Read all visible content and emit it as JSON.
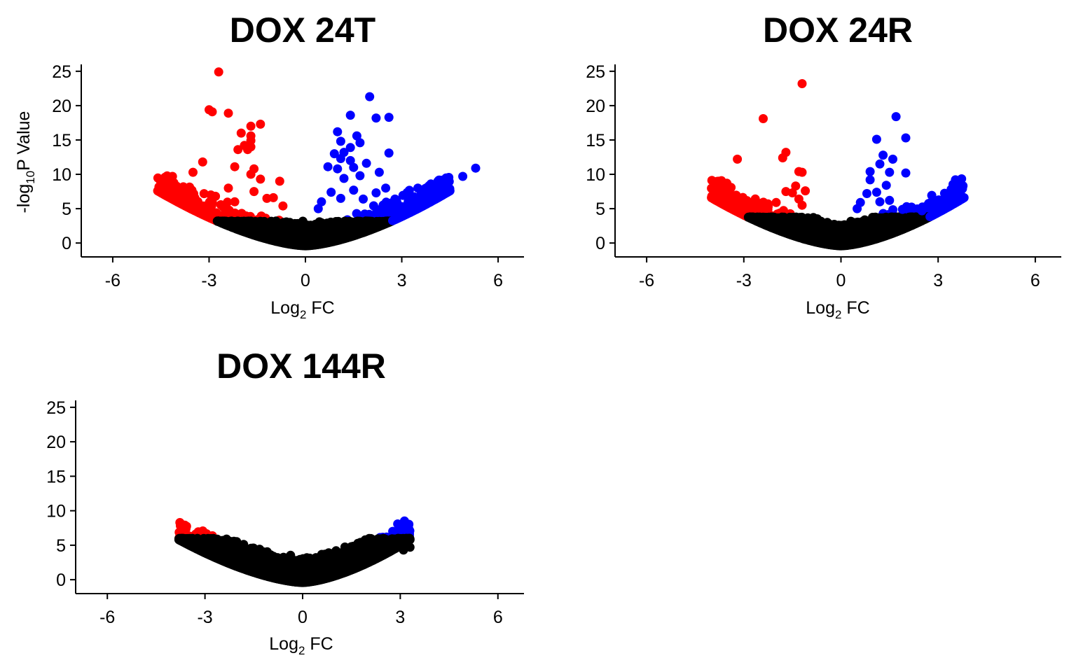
{
  "chart_data": [
    {
      "type": "scatter",
      "title": "DOX 24T",
      "xlabel": {
        "base": "Log",
        "sub": "2",
        "rest": " FC"
      },
      "ylabel": {
        "pre": "-log",
        "sub": "10",
        "rest": "P Value"
      },
      "xlim": [
        -6.5,
        6.5
      ],
      "ylim": [
        -1,
        26
      ],
      "xticks": [
        "-6",
        "-3",
        "0",
        "3",
        "6"
      ],
      "yticks": [
        "0",
        "5",
        "10",
        "15",
        "20",
        "25"
      ],
      "colors": {
        "down": "#ff0000",
        "up": "#0000ff",
        "ns": "#000000"
      },
      "ns_threshold": 3.2,
      "envelope": {
        "down_edge": -4.6,
        "up_edge": 4.5,
        "edge_y": 7.6
      },
      "down_points": [
        [
          -2.7,
          24.9
        ],
        [
          -3.0,
          19.4
        ],
        [
          -2.9,
          19.1
        ],
        [
          -2.4,
          18.9
        ],
        [
          -1.4,
          17.3
        ],
        [
          -2.0,
          16.0
        ],
        [
          -1.7,
          17.0
        ],
        [
          -1.7,
          15.6
        ],
        [
          -1.7,
          14.9
        ],
        [
          -1.7,
          14.0
        ],
        [
          -1.8,
          13.6
        ],
        [
          -2.1,
          13.6
        ],
        [
          -1.9,
          14.2
        ],
        [
          -3.5,
          10.3
        ],
        [
          -3.2,
          11.8
        ],
        [
          -2.2,
          11.1
        ],
        [
          -1.6,
          10.8
        ],
        [
          -1.7,
          10.0
        ],
        [
          -1.4,
          9.3
        ],
        [
          -0.8,
          9.0
        ],
        [
          -2.4,
          8.0
        ],
        [
          -2.8,
          6.8
        ],
        [
          -2.2,
          6.0
        ],
        [
          -1.6,
          7.5
        ],
        [
          -1.2,
          6.5
        ],
        [
          -1.0,
          6.6
        ],
        [
          -0.7,
          5.4
        ],
        [
          -2.5,
          5.2
        ],
        [
          -3.0,
          5.8
        ],
        [
          -3.5,
          6.4
        ]
      ],
      "up_points": [
        [
          2.0,
          21.3
        ],
        [
          1.4,
          18.6
        ],
        [
          2.2,
          18.2
        ],
        [
          2.6,
          18.3
        ],
        [
          1.0,
          16.2
        ],
        [
          1.6,
          15.6
        ],
        [
          1.7,
          14.6
        ],
        [
          1.1,
          14.8
        ],
        [
          1.4,
          13.9
        ],
        [
          0.9,
          13.0
        ],
        [
          1.2,
          13.2
        ],
        [
          1.1,
          12.3
        ],
        [
          1.4,
          12.0
        ],
        [
          2.6,
          13.1
        ],
        [
          0.7,
          11.1
        ],
        [
          1.0,
          10.8
        ],
        [
          1.5,
          11.0
        ],
        [
          1.9,
          11.6
        ],
        [
          2.3,
          10.3
        ],
        [
          1.2,
          9.4
        ],
        [
          1.7,
          9.8
        ],
        [
          2.5,
          8.0
        ],
        [
          3.5,
          8.0
        ],
        [
          4.9,
          9.7
        ],
        [
          5.3,
          10.9
        ],
        [
          0.8,
          7.4
        ],
        [
          1.5,
          7.7
        ],
        [
          2.2,
          7.3
        ],
        [
          0.5,
          6.0
        ],
        [
          1.1,
          6.5
        ],
        [
          1.8,
          6.4
        ],
        [
          2.8,
          5.7
        ],
        [
          3.2,
          6.0
        ],
        [
          0.4,
          5.0
        ]
      ]
    },
    {
      "type": "scatter",
      "title": "DOX 24R",
      "xlabel": {
        "base": "Log",
        "sub": "2",
        "rest": " FC"
      },
      "ylabel": null,
      "xlim": [
        -6.5,
        6.5
      ],
      "ylim": [
        -1,
        26
      ],
      "xticks": [
        "-6",
        "-3",
        "0",
        "3",
        "6"
      ],
      "yticks": [
        "0",
        "5",
        "10",
        "15",
        "20",
        "25"
      ],
      "colors": {
        "down": "#ff0000",
        "up": "#0000ff",
        "ns": "#000000"
      },
      "ns_threshold": 3.8,
      "envelope": {
        "down_edge": -4.0,
        "up_edge": 3.8,
        "edge_y": 6.6
      },
      "down_points": [
        [
          -1.2,
          23.2
        ],
        [
          -2.4,
          18.1
        ],
        [
          -1.7,
          13.2
        ],
        [
          -1.8,
          12.4
        ],
        [
          -3.2,
          12.2
        ],
        [
          -1.3,
          10.4
        ],
        [
          -1.2,
          10.3
        ],
        [
          -1.1,
          7.6
        ],
        [
          -1.4,
          8.3
        ],
        [
          -1.5,
          7.3
        ],
        [
          -1.7,
          7.5
        ],
        [
          -1.3,
          6.4
        ],
        [
          -2.0,
          5.9
        ],
        [
          -2.5,
          5.2
        ],
        [
          -3.0,
          5.3
        ],
        [
          -1.2,
          5.5
        ]
      ],
      "up_points": [
        [
          1.7,
          18.4
        ],
        [
          2.0,
          15.3
        ],
        [
          1.1,
          15.1
        ],
        [
          1.3,
          12.8
        ],
        [
          1.6,
          12.2
        ],
        [
          1.2,
          11.5
        ],
        [
          0.9,
          10.4
        ],
        [
          1.5,
          10.3
        ],
        [
          2.0,
          10.2
        ],
        [
          0.9,
          9.2
        ],
        [
          1.4,
          8.4
        ],
        [
          1.1,
          7.4
        ],
        [
          0.8,
          7.2
        ],
        [
          1.5,
          6.2
        ],
        [
          0.6,
          5.9
        ],
        [
          1.2,
          6.0
        ],
        [
          0.5,
          5.0
        ],
        [
          1.9,
          4.9
        ],
        [
          2.5,
          4.7
        ],
        [
          3.0,
          4.6
        ]
      ]
    },
    {
      "type": "scatter",
      "title": "DOX 144R",
      "xlabel": {
        "base": "Log",
        "sub": "2",
        "rest": " FC"
      },
      "ylabel": null,
      "xlim": [
        -6.5,
        6.5
      ],
      "ylim": [
        -1,
        26
      ],
      "xticks": [
        "-6",
        "-3",
        "0",
        "3",
        "6"
      ],
      "yticks": [
        "0",
        "5",
        "10",
        "15",
        "20",
        "25"
      ],
      "colors": {
        "down": "#ff0000",
        "up": "#0000ff",
        "ns": "#000000"
      },
      "ns_threshold": 6.0,
      "envelope": {
        "down_edge": -3.8,
        "up_edge": 3.3,
        "edge_y": 5.8
      },
      "down_points": [],
      "up_points": [],
      "ns_extra_points": [
        [
          0.8,
          3.9
        ],
        [
          -3.7,
          5.8
        ],
        [
          -3.5,
          5.5
        ],
        [
          3.3,
          4.7
        ],
        [
          3.1,
          4.3
        ],
        [
          -2.5,
          3.3
        ],
        [
          -1.8,
          3.4
        ],
        [
          -1.2,
          2.8
        ],
        [
          1.5,
          2.6
        ],
        [
          2.2,
          3.1
        ]
      ]
    }
  ]
}
